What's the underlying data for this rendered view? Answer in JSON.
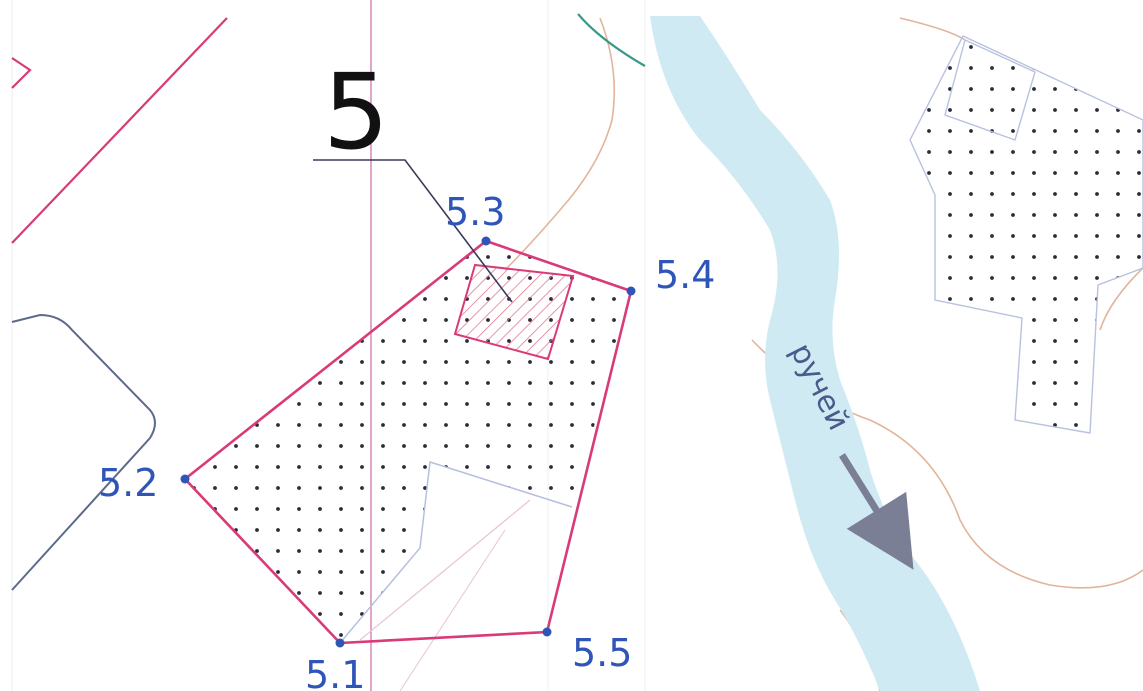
{
  "parcel": {
    "number": "5",
    "points": [
      {
        "id": "5.1",
        "label": "5.1"
      },
      {
        "id": "5.2",
        "label": "5.2"
      },
      {
        "id": "5.3",
        "label": "5.3"
      },
      {
        "id": "5.4",
        "label": "5.4"
      },
      {
        "id": "5.5",
        "label": "5.5"
      }
    ]
  },
  "stream": {
    "label": "ручей"
  },
  "colors": {
    "boundary": "#d93a78",
    "point": "#2f55b8",
    "label": "#2f55b8",
    "water": "#cfeaf3",
    "grey_road": "#5e6a8c",
    "contour": "#e2b49a",
    "dots": "#2b2b3a",
    "building_hatch": "#e05a7a",
    "arrow": "#7b7f96"
  }
}
